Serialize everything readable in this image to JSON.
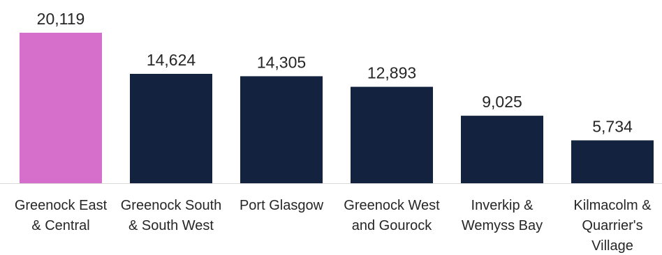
{
  "chart_data": {
    "type": "bar",
    "categories": [
      "Greenock East & Central",
      "Greenock South & South West",
      "Port Glasgow",
      "Greenock West and Gourock",
      "Inverkip & Wemyss Bay",
      "Kilmacolm & Quarrier's Village"
    ],
    "values": [
      20119,
      14624,
      14305,
      12893,
      9025,
      5734
    ],
    "value_labels": [
      "20,119",
      "14,624",
      "14,305",
      "12,893",
      "9,025",
      "5,734"
    ],
    "colors": [
      "#d66fcb",
      "#13233f",
      "#13233f",
      "#13233f",
      "#13233f",
      "#13233f"
    ]
  }
}
